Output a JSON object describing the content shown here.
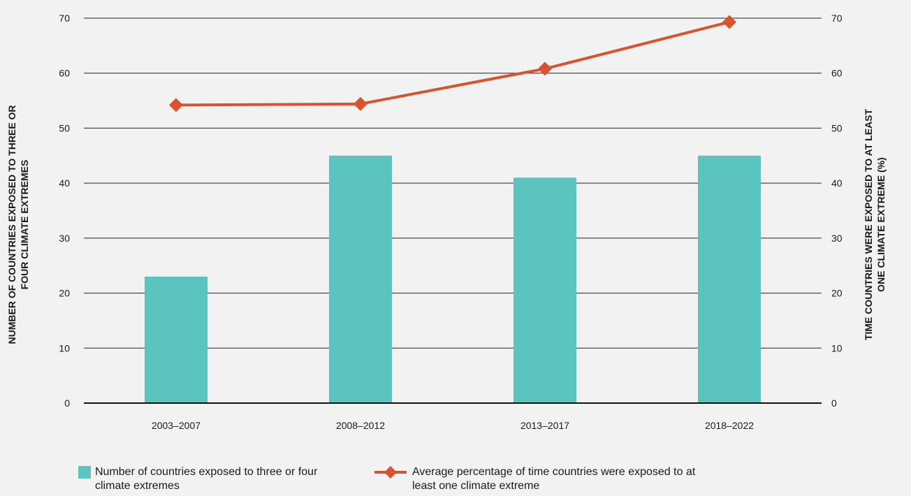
{
  "chart_data": {
    "type": "bar",
    "categories": [
      "2003–2007",
      "2008–2012",
      "2013–2017",
      "2018–2022"
    ],
    "series": [
      {
        "name": "Number of countries exposed to three or four climate extremes",
        "type": "bar",
        "axis": "left",
        "color": "#5bc4bf",
        "values": [
          23,
          45,
          41,
          45
        ]
      },
      {
        "name": "Average percentage of time countries were exposed to at least one climate extreme",
        "type": "line",
        "axis": "right",
        "color": "#d9532e",
        "values": [
          54.2,
          54.4,
          60.8,
          69.3
        ]
      }
    ],
    "ylabel": "NUMBER OF COUNTRIES EXPOSED TO THREE OR FOUR CLIMATE EXTREMES",
    "y2label": "TIME COUNTRIES WERE EXPOSED TO AT LEAST ONE CLIMATE EXTREME (%)",
    "ylim": [
      0,
      70
    ],
    "y2lim": [
      0,
      70
    ],
    "yticks": [
      "0",
      "10",
      "20",
      "30",
      "40",
      "50",
      "60",
      "70"
    ],
    "grid": true,
    "legend_position": "bottom"
  },
  "legend": {
    "bars_label": "Number of countries exposed to three or four climate extremes",
    "line_label": "Average percentage of time countries were exposed to at least one climate extreme"
  }
}
